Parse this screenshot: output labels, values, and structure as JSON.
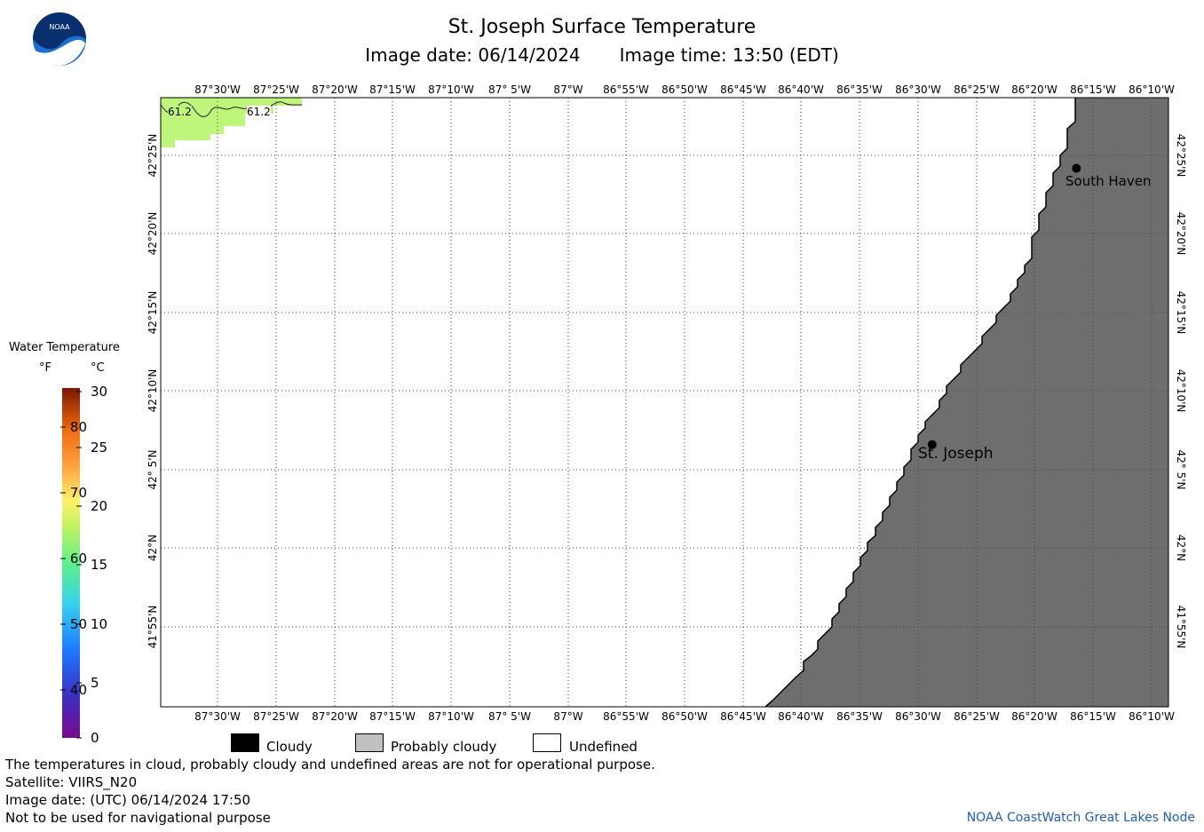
{
  "header": {
    "title": "St. Joseph Surface Temperature",
    "image_date": "Image date: 06/14/2024",
    "image_time": "Image time: 13:50 (EDT)"
  },
  "logo": {
    "text": "NOAA"
  },
  "map": {
    "lon_labels_top": [
      "87°30'W",
      "87°25'W",
      "87°20'W",
      "87°15'W",
      "87°10'W",
      "87° 5'W",
      "87°W",
      "86°55'W",
      "86°50'W",
      "86°45'W",
      "86°40'W",
      "86°35'W",
      "86°30'W",
      "86°25'W",
      "86°20'W",
      "86°15'W",
      "86°10'W"
    ],
    "lon_labels_bottom": [
      "87°30'W",
      "87°25'W",
      "87°20'W",
      "87°15'W",
      "87°10'W",
      "87° 5'W",
      "87°W",
      "86°55'W",
      "86°50'W",
      "86°45'W",
      "86°40'W",
      "86°35'W",
      "86°30'W",
      "86°25'W",
      "86°20'W",
      "86°15'W",
      "86°10'W"
    ],
    "lat_labels": [
      "42°25'N",
      "42°20'N",
      "42°15'N",
      "42°10'N",
      "42° 5'N",
      "42°N",
      "41°55'N"
    ],
    "contours": [
      "61.2",
      "61.2"
    ],
    "cities": [
      {
        "name": "South Haven",
        "lat": 42.403,
        "lon": -86.274
      },
      {
        "name": "St. Joseph",
        "lat": 42.11,
        "lon": -86.48
      }
    ],
    "land_color": "#6e6e6e",
    "warm_water_color": "#bef57a"
  },
  "legend": {
    "title": "Water Temperature",
    "unit_f": "°F",
    "unit_c": "°C",
    "f_ticks": [
      "80",
      "70",
      "60",
      "50",
      "40"
    ],
    "c_ticks": [
      "30",
      "25",
      "20",
      "15",
      "10",
      "5",
      "0"
    ]
  },
  "key": {
    "cloudy": "Cloudy",
    "probably_cloudy": "Probably cloudy",
    "undefined": "Undefined",
    "cloudy_color": "#000000",
    "probably_cloudy_color": "#c0c0c0",
    "undefined_color": "#ffffff"
  },
  "footer": {
    "note": "The temperatures in cloud, probably cloudy and undefined areas are not for operational purpose.",
    "satellite": "Satellite: VIIRS_N20",
    "utc_date": "Image date: (UTC) 06/14/2024  17:50",
    "disclaimer": "Not to be used for navigational purpose",
    "credit": "NOAA CoastWatch Great Lakes Node"
  }
}
